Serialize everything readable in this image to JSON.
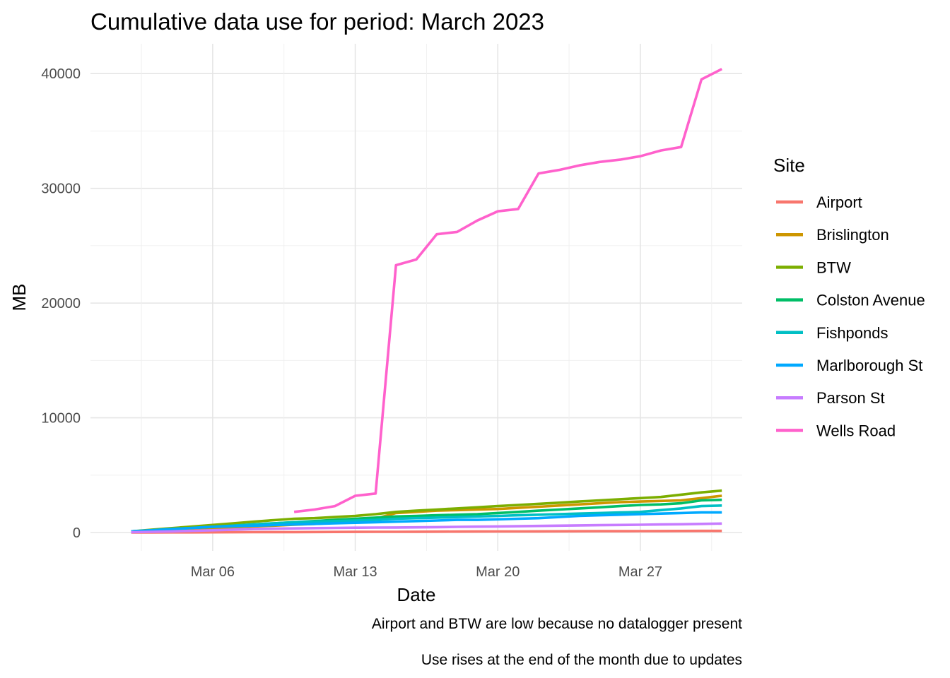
{
  "chart_data": {
    "type": "line",
    "title": "Cumulative data use for period: March 2023",
    "xlabel": "Date",
    "ylabel": "MB",
    "x_ticks": [
      {
        "day": 6,
        "label": "Mar 06"
      },
      {
        "day": 13,
        "label": "Mar 13"
      },
      {
        "day": 20,
        "label": "Mar 20"
      },
      {
        "day": 27,
        "label": "Mar 27"
      }
    ],
    "y_ticks": [
      {
        "value": 0,
        "label": "0"
      },
      {
        "value": 10000,
        "label": "10000"
      },
      {
        "value": 20000,
        "label": "20000"
      },
      {
        "value": 30000,
        "label": "30000"
      },
      {
        "value": 40000,
        "label": "40000"
      }
    ],
    "xlim": [
      "2023-02-28",
      "2023-04-01"
    ],
    "ylim": [
      -1600,
      42600
    ],
    "grid": true,
    "legend": {
      "title": "Site",
      "position": "right"
    },
    "captions": [
      "Airport and BTW are low because no datalogger present",
      "Use rises at the end of the month due to updates"
    ],
    "x_days": [
      2,
      3,
      4,
      5,
      6,
      7,
      8,
      9,
      10,
      11,
      12,
      13,
      14,
      15,
      16,
      17,
      18,
      19,
      20,
      21,
      22,
      23,
      24,
      25,
      26,
      27,
      28,
      29,
      30,
      31
    ],
    "series": [
      {
        "name": "Airport",
        "color": "#F8766D",
        "values": [
          0,
          5,
          10,
          15,
          20,
          25,
          30,
          35,
          40,
          45,
          50,
          55,
          60,
          65,
          70,
          75,
          80,
          85,
          90,
          95,
          100,
          105,
          110,
          115,
          120,
          125,
          130,
          135,
          140,
          145
        ]
      },
      {
        "name": "Brislington",
        "color": "#CD9600",
        "values": [
          80,
          150,
          230,
          300,
          380,
          450,
          530,
          600,
          680,
          750,
          830,
          900,
          1200,
          1700,
          1800,
          1900,
          1950,
          2000,
          2050,
          2150,
          2250,
          2350,
          2450,
          2550,
          2650,
          2700,
          2750,
          2800,
          3000,
          3200
        ]
      },
      {
        "name": "BTW",
        "color": "#7CAE00",
        "values": [
          100,
          240,
          380,
          520,
          660,
          800,
          940,
          1080,
          1200,
          1250,
          1350,
          1450,
          1600,
          1800,
          1900,
          2000,
          2100,
          2200,
          2300,
          2400,
          2500,
          2600,
          2700,
          2800,
          2900,
          3000,
          3100,
          3300,
          3500,
          3650
        ]
      },
      {
        "name": "Colston Avenue",
        "color": "#00BE67",
        "values": [
          100,
          200,
          300,
          400,
          500,
          600,
          700,
          800,
          900,
          1000,
          1100,
          1200,
          1300,
          1400,
          1450,
          1500,
          1550,
          1600,
          1700,
          1800,
          1900,
          2000,
          2100,
          2200,
          2300,
          2400,
          2450,
          2550,
          2800,
          2850
        ]
      },
      {
        "name": "Fishponds",
        "color": "#00BFC4",
        "values": [
          100,
          200,
          300,
          400,
          500,
          600,
          700,
          800,
          900,
          950,
          1000,
          1050,
          1100,
          1200,
          1250,
          1300,
          1350,
          1400,
          1450,
          1500,
          1550,
          1600,
          1650,
          1700,
          1750,
          1800,
          1950,
          2100,
          2300,
          2350
        ]
      },
      {
        "name": "Marlborough St",
        "color": "#00A9FF",
        "values": [
          100,
          200,
          300,
          400,
          500,
          550,
          600,
          650,
          700,
          750,
          800,
          850,
          900,
          950,
          1000,
          1050,
          1100,
          1100,
          1150,
          1200,
          1250,
          1350,
          1450,
          1500,
          1550,
          1600,
          1650,
          1700,
          1750,
          1750
        ]
      },
      {
        "name": "Parson St",
        "color": "#C77CFF",
        "values": [
          30,
          60,
          100,
          150,
          200,
          250,
          300,
          330,
          360,
          380,
          400,
          420,
          430,
          440,
          450,
          470,
          490,
          510,
          530,
          550,
          570,
          600,
          620,
          640,
          660,
          680,
          700,
          720,
          750,
          780
        ]
      },
      {
        "name": "Wells Road",
        "color": "#FF61CC",
        "start_day": 10,
        "values": [
          1800,
          2000,
          2300,
          3200,
          3400,
          23300,
          23800,
          26000,
          26200,
          27200,
          28000,
          28200,
          31300,
          31600,
          32000,
          32300,
          32500,
          32800,
          33300,
          33600,
          39500,
          40400
        ]
      }
    ]
  }
}
